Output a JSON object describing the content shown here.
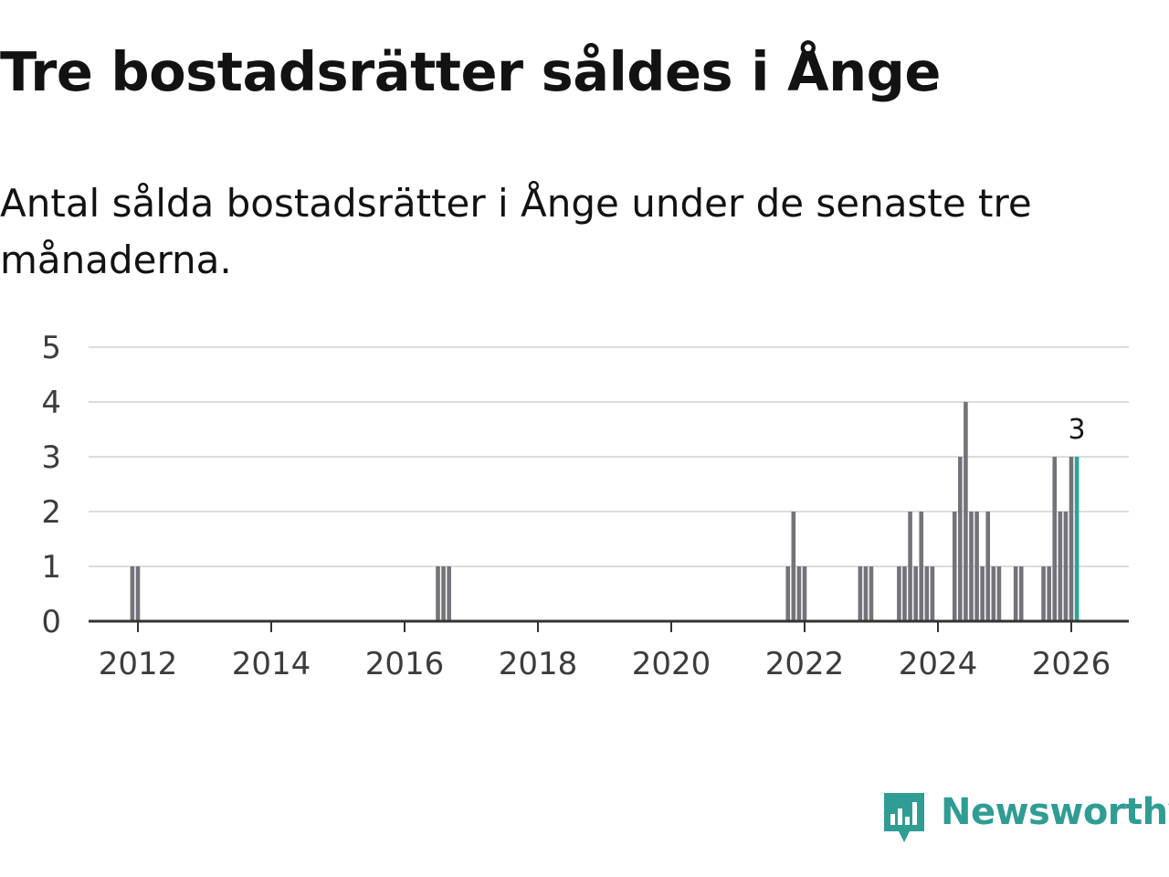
{
  "title": "Tre bostadsrätter såldes i Ånge",
  "subtitle": "Antal sålda bostadsrätter i Ånge under de senaste tre månaderna.",
  "brand": {
    "name": "Newsworthy",
    "color": "#2f9d94",
    "icon": "newsworthy-chart-icon"
  },
  "colors": {
    "bar": "#74737a",
    "highlight": "#2ba596",
    "grid": "#dcdcdc",
    "axis": "#333333"
  },
  "chart_data": {
    "type": "bar",
    "title": "Tre bostadsrätter såldes i Ånge",
    "xlabel": "",
    "ylabel": "",
    "ylim": [
      0,
      5
    ],
    "yticks": [
      0,
      1,
      2,
      3,
      4,
      5
    ],
    "xticks": [
      "2012",
      "2014",
      "2016",
      "2018",
      "2020",
      "2022",
      "2024",
      "2026"
    ],
    "x_range_years": [
      2010.8,
      2026.9
    ],
    "grid": true,
    "annotation": {
      "label": "3",
      "target": "2026-01"
    },
    "series": [
      {
        "name": "Antal sålda bostadsrätter",
        "points": [
          {
            "month": "2011-12",
            "value": 1
          },
          {
            "month": "2012-01",
            "value": 1
          },
          {
            "month": "2016-07",
            "value": 1
          },
          {
            "month": "2016-08",
            "value": 1
          },
          {
            "month": "2016-09",
            "value": 1
          },
          {
            "month": "2021-10",
            "value": 1
          },
          {
            "month": "2021-11",
            "value": 2
          },
          {
            "month": "2021-12",
            "value": 1
          },
          {
            "month": "2022-01",
            "value": 1
          },
          {
            "month": "2022-11",
            "value": 1
          },
          {
            "month": "2022-12",
            "value": 1
          },
          {
            "month": "2023-01",
            "value": 1
          },
          {
            "month": "2023-06",
            "value": 1
          },
          {
            "month": "2023-07",
            "value": 1
          },
          {
            "month": "2023-08",
            "value": 2
          },
          {
            "month": "2023-09",
            "value": 1
          },
          {
            "month": "2023-10",
            "value": 2
          },
          {
            "month": "2023-11",
            "value": 1
          },
          {
            "month": "2023-12",
            "value": 1
          },
          {
            "month": "2024-04",
            "value": 2
          },
          {
            "month": "2024-05",
            "value": 3
          },
          {
            "month": "2024-06",
            "value": 4
          },
          {
            "month": "2024-07",
            "value": 2
          },
          {
            "month": "2024-08",
            "value": 2
          },
          {
            "month": "2024-09",
            "value": 1
          },
          {
            "month": "2024-10",
            "value": 2
          },
          {
            "month": "2024-11",
            "value": 1
          },
          {
            "month": "2024-12",
            "value": 1
          },
          {
            "month": "2025-03",
            "value": 1
          },
          {
            "month": "2025-04",
            "value": 1
          },
          {
            "month": "2025-08",
            "value": 1
          },
          {
            "month": "2025-09",
            "value": 1
          },
          {
            "month": "2025-10",
            "value": 3
          },
          {
            "month": "2025-11",
            "value": 2
          },
          {
            "month": "2025-12",
            "value": 2
          },
          {
            "month": "2026-01",
            "value": 3
          },
          {
            "month": "2026-02",
            "value": 3,
            "highlight": true
          }
        ]
      }
    ]
  }
}
